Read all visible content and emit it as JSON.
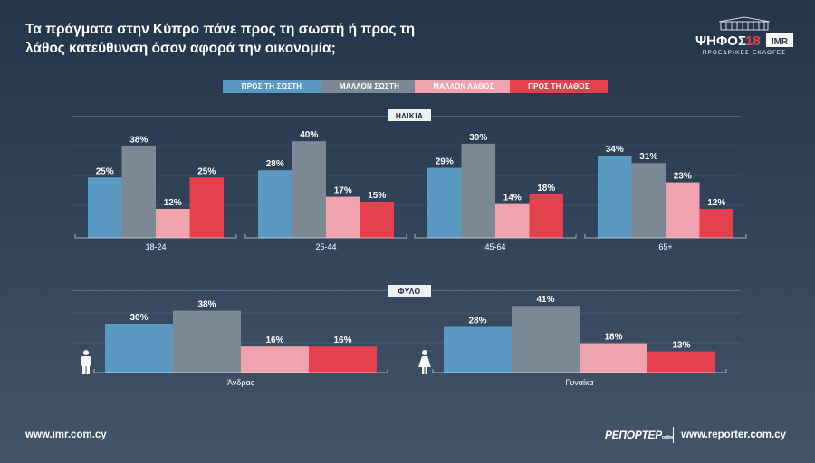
{
  "header": {
    "title": "Τα πράγματα στην Κύπρο πάνε προς τη σωστή ή προς τη λάθος κατεύθυνση όσον αφορά την οικονομία;"
  },
  "logo": {
    "main": "ΨΗΦΟΣ",
    "year": "18",
    "badge": "IMR",
    "subtitle": "ΠΡΟΕΔΡΙΚΕΣ ΕΚΛΟΓΕΣ"
  },
  "legend": [
    {
      "label": "ΠΡΟΣ ΤΗ ΣΩΣΤΗ",
      "color": "#5a9ac2"
    },
    {
      "label": "ΜΑΛΛΟΝ ΣΩΣΤΗ",
      "color": "#7c8893"
    },
    {
      "label": "ΜΑΛΛΟΝ ΛΑΘΟΣ",
      "color": "#f0a3ae"
    },
    {
      "label": "ΠΡΟΣ ΤΗ ΛΑΘΟΣ",
      "color": "#e5404e"
    }
  ],
  "sections": {
    "age": "ΗΛΙΚΙΑ",
    "gender": "ΦΥΛΟ"
  },
  "chart_data": [
    {
      "type": "bar",
      "title": "ΗΛΙΚΙΑ",
      "categories": [
        "18-24",
        "25-44",
        "45-64",
        "65+"
      ],
      "series": [
        {
          "name": "ΠΡΟΣ ΤΗ ΣΩΣΤΗ",
          "values": [
            25,
            28,
            29,
            34
          ]
        },
        {
          "name": "ΜΑΛΛΟΝ ΣΩΣΤΗ",
          "values": [
            38,
            40,
            39,
            31
          ]
        },
        {
          "name": "ΜΑΛΛΟΝ ΛΑΘΟΣ",
          "values": [
            12,
            17,
            14,
            23
          ]
        },
        {
          "name": "ΠΡΟΣ ΤΗ ΛΑΘΟΣ",
          "values": [
            25,
            15,
            18,
            12
          ]
        }
      ],
      "value_suffix": "%",
      "ylim": [
        0,
        40
      ]
    },
    {
      "type": "bar",
      "title": "ΦΥΛΟ",
      "categories": [
        "Άνδρας",
        "Γυναίκα"
      ],
      "series": [
        {
          "name": "ΠΡΟΣ ΤΗ ΣΩΣΤΗ",
          "values": [
            30,
            28
          ]
        },
        {
          "name": "ΜΑΛΛΟΝ ΣΩΣΤΗ",
          "values": [
            38,
            41
          ]
        },
        {
          "name": "ΜΑΛΛΟΝ ΛΑΘΟΣ",
          "values": [
            16,
            18
          ]
        },
        {
          "name": "ΠΡΟΣ ΤΗ ΛΑΘΟΣ",
          "values": [
            16,
            13
          ]
        }
      ],
      "value_suffix": "%",
      "ylim": [
        0,
        41
      ]
    }
  ],
  "footer": {
    "left_url": "www.imr.com.cy",
    "brand": "ΡΕΠΟΡΤΕΡ",
    "brand_suffix": "online",
    "right_url": "www.reporter.com.cy"
  }
}
